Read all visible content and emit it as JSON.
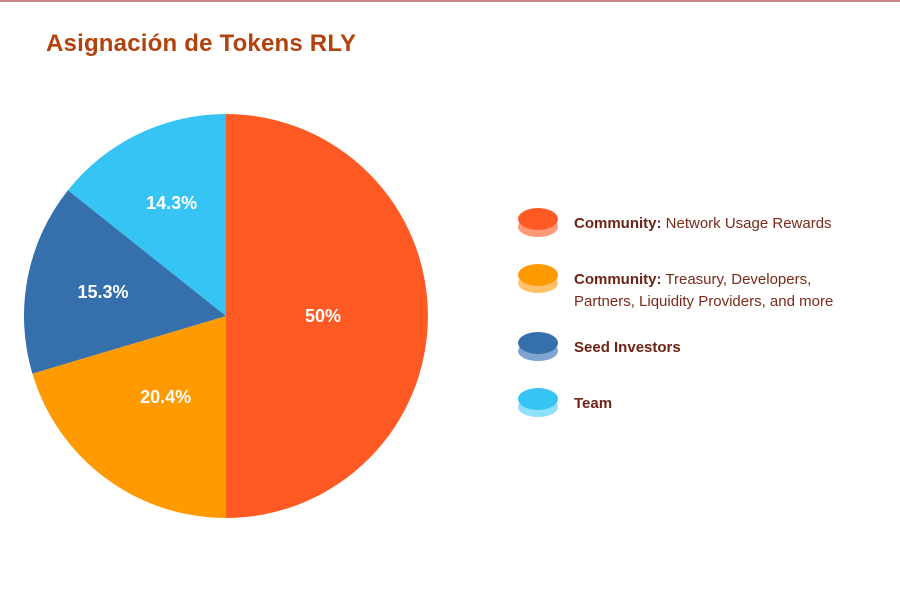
{
  "chart_data": {
    "type": "pie",
    "title": "Asignación de Tokens RLY",
    "slices": [
      {
        "label": "Community: Network Usage Rewards",
        "value": 50.0,
        "value_label": "50%",
        "color": "#ff5a24",
        "legend_bold": "Community:",
        "legend_text": " Network Usage Rewards"
      },
      {
        "label": "Community: Treasury, Developers, Partners, Liquidity Providers, and more",
        "value": 20.4,
        "value_label": "20.4%",
        "color": "#ff9a00",
        "legend_bold": "Community:",
        "legend_text": " Treasury, Developers, Partners, Liquidity Providers, and more"
      },
      {
        "label": "Seed Investors",
        "value": 15.3,
        "value_label": "15.3%",
        "color": "#3570ac",
        "legend_bold": "Seed Investors",
        "legend_text": ""
      },
      {
        "label": "Team",
        "value": 14.3,
        "value_label": "14.3%",
        "color": "#35c4f4",
        "legend_bold": "Team",
        "legend_text": ""
      }
    ],
    "legend_position": "right",
    "swatch_light_colors": [
      "#ff9a78",
      "#ffc26a",
      "#7ea4cf",
      "#8fe0fa"
    ]
  }
}
